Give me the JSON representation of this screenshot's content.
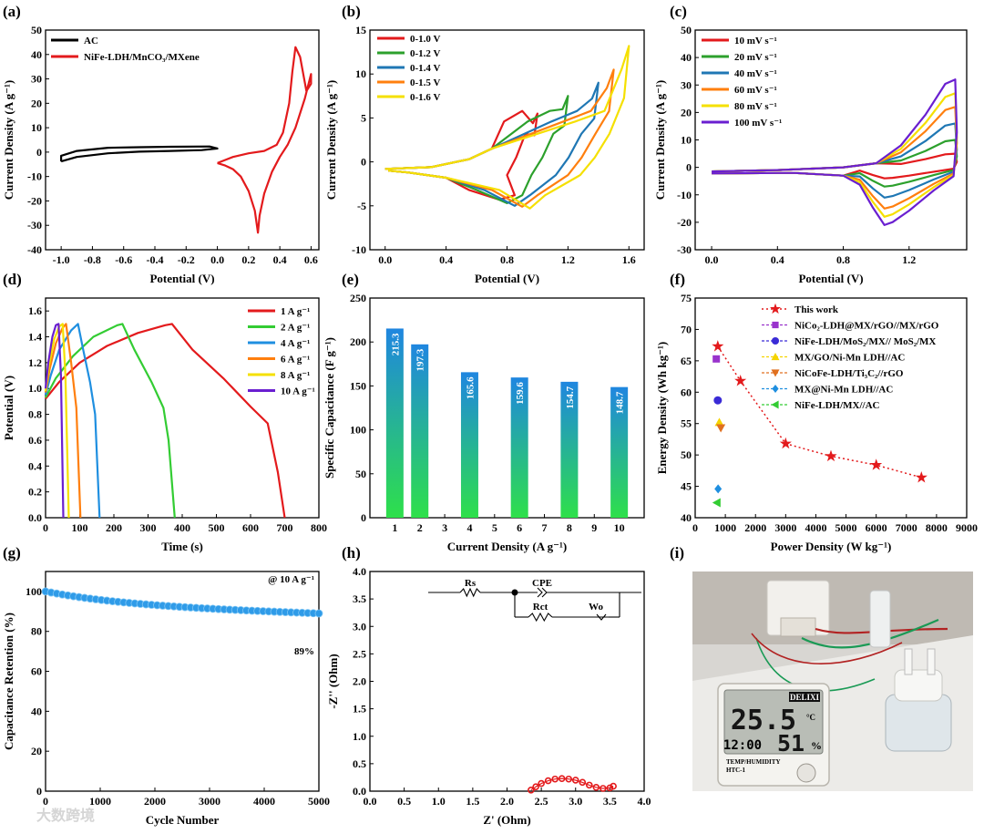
{
  "panel_labels": [
    "(a)",
    "(b)",
    "(c)",
    "(d)",
    "(e)",
    "(f)",
    "(g)",
    "(h)",
    "(i)"
  ],
  "watermark": "大数跨境",
  "chart_data": [
    {
      "id": "a",
      "type": "line",
      "xlabel": "Potential (V)",
      "ylabel": "Current Density (A g⁻¹)",
      "xlim": [
        -1.1,
        0.65
      ],
      "ylim": [
        -40,
        50
      ],
      "xticks": [
        "-1.0",
        "-0.8",
        "-0.6",
        "-0.4",
        "-0.2",
        "0.0",
        "0.2",
        "0.4",
        "0.6"
      ],
      "yticks": [
        "-40",
        "-30",
        "-20",
        "-10",
        "0",
        "10",
        "20",
        "30",
        "40",
        "50"
      ],
      "legend": [
        "AC",
        "NiFe-LDH/MnCO₃/MXene"
      ],
      "series": [
        {
          "name": "AC",
          "color": "#000000",
          "x": [
            -1.0,
            -0.9,
            -0.7,
            -0.5,
            -0.3,
            -0.1,
            0.0,
            -0.05,
            -0.3,
            -0.5,
            -0.7,
            -0.9,
            -1.0,
            -1.0
          ],
          "y": [
            -3.8,
            -2.0,
            -0.5,
            0.2,
            0.5,
            0.8,
            1.5,
            2.3,
            2.2,
            2.0,
            1.8,
            0.5,
            -1.5,
            -3.8
          ]
        },
        {
          "name": "NiFe-LDH/MnCO₃/MXene",
          "color": "#e31a1c",
          "x": [
            0.0,
            0.1,
            0.2,
            0.3,
            0.38,
            0.42,
            0.46,
            0.48,
            0.5,
            0.53,
            0.57,
            0.6,
            0.6,
            0.56,
            0.5,
            0.45,
            0.4,
            0.35,
            0.3,
            0.27,
            0.26,
            0.24,
            0.2,
            0.15,
            0.1,
            0.05,
            0.0
          ],
          "y": [
            -4.5,
            -2.0,
            -0.5,
            0.5,
            3.0,
            8.0,
            20.0,
            33.0,
            43.0,
            39.0,
            25.0,
            28.0,
            32.0,
            22.0,
            10.0,
            3.0,
            -2.0,
            -8.0,
            -17.0,
            -26.0,
            -33.0,
            -24.0,
            -16.0,
            -10.0,
            -7.0,
            -5.5,
            -4.5
          ]
        }
      ]
    },
    {
      "id": "b",
      "type": "line",
      "xlabel": "Potential (V)",
      "ylabel": "Current Density (A g⁻¹)",
      "xlim": [
        -0.1,
        1.7
      ],
      "ylim": [
        -10,
        15
      ],
      "xticks": [
        "0.0",
        "0.4",
        "0.8",
        "1.2",
        "1.6"
      ],
      "yticks": [
        "-10",
        "-5",
        "0",
        "5",
        "10",
        "15"
      ],
      "legend": [
        "0-1.0 V",
        "0-1.2 V",
        "0-1.4 V",
        "0-1.5 V",
        "0-1.6 V"
      ],
      "series": [
        {
          "name": "0-1.0 V",
          "color": "#e31a1c",
          "vmax": 1.0,
          "peak": 5.5,
          "trough": -4.3,
          "cathx": 0.75
        },
        {
          "name": "0-1.2 V",
          "color": "#2ca02c",
          "vmax": 1.2,
          "peak": 7.5,
          "trough": -4.7,
          "cathx": 0.8
        },
        {
          "name": "0-1.4 V",
          "color": "#1f77b4",
          "vmax": 1.4,
          "peak": 9.0,
          "trough": -5.0,
          "cathx": 0.85
        },
        {
          "name": "0-1.5 V",
          "color": "#ff7f0e",
          "vmax": 1.5,
          "peak": 10.5,
          "trough": -5.1,
          "cathx": 0.9
        },
        {
          "name": "0-1.6 V",
          "color": "#f5e000",
          "vmax": 1.6,
          "peak": 13.2,
          "trough": -5.3,
          "cathx": 0.95
        }
      ]
    },
    {
      "id": "c",
      "type": "line",
      "xlabel": "Potential (V)",
      "ylabel": "Current Density (A g⁻¹)",
      "xlim": [
        -0.1,
        1.55
      ],
      "ylim": [
        -30,
        50
      ],
      "xticks": [
        "0.0",
        "0.4",
        "0.8",
        "1.2"
      ],
      "yticks": [
        "-30",
        "-20",
        "-10",
        "0",
        "10",
        "20",
        "30",
        "40",
        "50"
      ],
      "legend": [
        "10 mV s⁻¹",
        "20 mV s⁻¹",
        "40 mV s⁻¹",
        "60 mV s⁻¹",
        "80 mV s⁻¹",
        "100 mV s⁻¹"
      ],
      "series": [
        {
          "name": "10 mV s⁻¹",
          "color": "#e31a1c",
          "peak": 5,
          "trough": -4
        },
        {
          "name": "20 mV s⁻¹",
          "color": "#2ca02c",
          "peak": 10,
          "trough": -7
        },
        {
          "name": "40 mV s⁻¹",
          "color": "#1f77b4",
          "peak": 16,
          "trough": -11
        },
        {
          "name": "60 mV s⁻¹",
          "color": "#ff7f0e",
          "peak": 22,
          "trough": -15
        },
        {
          "name": "80 mV s⁻¹",
          "color": "#f5e000",
          "peak": 27,
          "trough": -18
        },
        {
          "name": "100 mV s⁻¹",
          "color": "#6a1fd0",
          "peak": 32,
          "trough": -21
        }
      ]
    },
    {
      "id": "d",
      "type": "line",
      "xlabel": "Time (s)",
      "ylabel": "Potential (V)",
      "xlim": [
        0,
        800
      ],
      "ylim": [
        0,
        1.7
      ],
      "xticks": [
        "0",
        "100",
        "200",
        "300",
        "400",
        "500",
        "600",
        "700",
        "800"
      ],
      "yticks": [
        "0.0",
        "0.2",
        "0.4",
        "0.6",
        "0.8",
        "1.0",
        "1.2",
        "1.4",
        "1.6"
      ],
      "legend": [
        "1 A g⁻¹",
        "2 A g⁻¹",
        "4 A g⁻¹",
        "6 A g⁻¹",
        "8 A g⁻¹",
        "10 A g⁻¹"
      ],
      "series": [
        {
          "name": "1 A g⁻¹",
          "color": "#e31a1c",
          "x": [
            0,
            40,
            100,
            180,
            270,
            350,
            370,
            430,
            520,
            600,
            650,
            680,
            700
          ],
          "y": [
            0.92,
            1.05,
            1.2,
            1.33,
            1.43,
            1.49,
            1.5,
            1.3,
            1.08,
            0.86,
            0.73,
            0.35,
            0.0
          ]
        },
        {
          "name": "2 A g⁻¹",
          "color": "#33cc33",
          "x": [
            0,
            30,
            80,
            140,
            210,
            225,
            260,
            310,
            345,
            360,
            378
          ],
          "y": [
            0.93,
            1.08,
            1.25,
            1.4,
            1.49,
            1.5,
            1.3,
            1.05,
            0.85,
            0.6,
            0.0
          ]
        },
        {
          "name": "4 A g⁻¹",
          "color": "#1f8fe0",
          "x": [
            0,
            15,
            40,
            75,
            95,
            110,
            130,
            145,
            158
          ],
          "y": [
            0.95,
            1.1,
            1.3,
            1.45,
            1.5,
            1.3,
            1.05,
            0.8,
            0.0
          ]
        },
        {
          "name": "6 A g⁻¹",
          "color": "#ff7f0e",
          "x": [
            0,
            12,
            30,
            50,
            60,
            75,
            90,
            102
          ],
          "y": [
            0.97,
            1.15,
            1.35,
            1.47,
            1.5,
            1.2,
            0.85,
            0.0
          ]
        },
        {
          "name": "8 A g⁻¹",
          "color": "#f5e000",
          "x": [
            0,
            10,
            25,
            40,
            50,
            58,
            68
          ],
          "y": [
            0.98,
            1.18,
            1.38,
            1.48,
            1.5,
            1.1,
            0.0
          ]
        },
        {
          "name": "10 A g⁻¹",
          "color": "#6a1fd0",
          "x": [
            0,
            8,
            20,
            30,
            38,
            45,
            52
          ],
          "y": [
            1.0,
            1.2,
            1.4,
            1.49,
            1.5,
            1.1,
            0.0
          ]
        }
      ]
    },
    {
      "id": "e",
      "type": "bar",
      "xlabel": "Current Density (A g⁻¹)",
      "ylabel": "Specific Capacitance (F g⁻¹)",
      "xlim": [
        0,
        11
      ],
      "ylim": [
        0,
        250
      ],
      "xticks": [
        "1",
        "2",
        "3",
        "4",
        "5",
        "6",
        "7",
        "8",
        "9",
        "10"
      ],
      "yticks": [
        "0",
        "50",
        "100",
        "150",
        "200",
        "250"
      ],
      "categories": [
        1,
        2,
        4,
        6,
        8,
        10
      ],
      "values": [
        215.3,
        197.3,
        165.6,
        159.6,
        154.7,
        148.7
      ],
      "labels": [
        "215.3",
        "197.3",
        "165.6",
        "159.6",
        "154.7",
        "148.7"
      ]
    },
    {
      "id": "f",
      "type": "scatter",
      "xlabel": "Power Density (W kg⁻¹)",
      "ylabel": "Energy Density (Wh kg⁻¹)",
      "xlim": [
        0,
        9000
      ],
      "ylim": [
        40,
        75
      ],
      "xticks": [
        "0",
        "1000",
        "2000",
        "3000",
        "4000",
        "5000",
        "6000",
        "7000",
        "8000",
        "9000"
      ],
      "yticks": [
        "40",
        "45",
        "50",
        "55",
        "60",
        "65",
        "70",
        "75"
      ],
      "series": [
        {
          "name": "This work",
          "color": "#e31a1c",
          "marker": "star",
          "line": "dotted",
          "x": [
            750,
            1500,
            3000,
            4500,
            6000,
            7500
          ],
          "y": [
            67.3,
            61.8,
            51.8,
            49.8,
            48.4,
            46.4
          ]
        },
        {
          "name": "NiCo₂-LDH@MX/rGO//MX/rGO",
          "color": "#9933cc",
          "marker": "square",
          "x": [
            700
          ],
          "y": [
            65.3
          ]
        },
        {
          "name": "NiFe-LDH/MoS₂/MX// MoS₂/MX",
          "color": "#3a2bd6",
          "marker": "circle",
          "x": [
            750
          ],
          "y": [
            58.7
          ]
        },
        {
          "name": "MX/GO/Ni-Mn LDH//AC",
          "color": "#f5d400",
          "marker": "triangle-up",
          "x": [
            800
          ],
          "y": [
            55.2
          ]
        },
        {
          "name": "NiCoFe-LDH/Ti₃C₂//rGO",
          "color": "#e07020",
          "marker": "triangle-down",
          "x": [
            850
          ],
          "y": [
            54.3
          ]
        },
        {
          "name": "MX@Ni-Mn LDH//AC",
          "color": "#1f8fe0",
          "marker": "diamond",
          "x": [
            760
          ],
          "y": [
            44.6
          ]
        },
        {
          "name": "NiFe-LDH/MX//AC",
          "color": "#33cc33",
          "marker": "triangle-left",
          "x": [
            720
          ],
          "y": [
            42.4
          ]
        }
      ]
    },
    {
      "id": "g",
      "type": "scatter",
      "xlabel": "Cycle Number",
      "ylabel": "Capacitance Retention (%)",
      "xlim": [
        0,
        5000
      ],
      "ylim": [
        0,
        110
      ],
      "xticks": [
        "0",
        "1000",
        "2000",
        "3000",
        "4000",
        "5000"
      ],
      "yticks": [
        "0",
        "20",
        "40",
        "60",
        "80",
        "100"
      ],
      "annotation": "@ 10 A g⁻¹",
      "final_label": "89%",
      "start": 100,
      "end": 89,
      "n_points": 50
    },
    {
      "id": "h",
      "type": "line",
      "xlabel": "Z' (Ohm)",
      "ylabel": "-Z'' (Ohm)",
      "xlim": [
        0,
        4
      ],
      "ylim": [
        0,
        4
      ],
      "xticks": [
        "0.0",
        "0.5",
        "1.0",
        "1.5",
        "2.0",
        "2.5",
        "3.0",
        "3.5",
        "4.0"
      ],
      "yticks": [
        "0.0",
        "0.5",
        "1.0",
        "1.5",
        "2.0",
        "2.5",
        "3.0",
        "3.5",
        "4.0"
      ],
      "circuit": [
        "Rs",
        "CPE",
        "Rct",
        "Wo"
      ],
      "series": [
        {
          "name": "EIS",
          "color": "#e31a1c",
          "x": [
            2.35,
            2.42,
            2.5,
            2.6,
            2.7,
            2.8,
            2.9,
            3.0,
            3.1,
            3.2,
            3.3,
            3.4,
            3.5,
            3.55
          ],
          "y": [
            0.02,
            0.08,
            0.14,
            0.19,
            0.22,
            0.23,
            0.22,
            0.2,
            0.16,
            0.11,
            0.07,
            0.05,
            0.06,
            0.09
          ]
        }
      ]
    },
    {
      "id": "i",
      "type": "photo",
      "display_brand": "DELIXI",
      "display_temp": "25.5",
      "display_unit": "°C",
      "display_time": "12:00",
      "display_humidity": "51",
      "display_hum_unit": "%",
      "display_model": "TEMP/HUMIDITY",
      "display_model2": "HTC-1"
    }
  ]
}
